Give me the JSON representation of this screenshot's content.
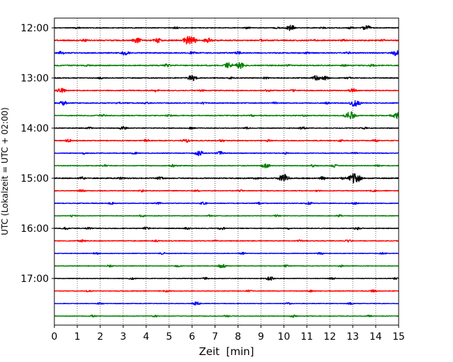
{
  "chart_data": {
    "type": "line",
    "chart_kind": "helicorder",
    "xlabel": "Zeit  [min]",
    "ylabel": "UTC (Lokalzeit = UTC + 02:00)",
    "xlim": [
      0,
      15
    ],
    "x_ticks": [
      "0",
      "1",
      "2",
      "3",
      "4",
      "5",
      "6",
      "7",
      "8",
      "9",
      "10",
      "11",
      "12",
      "13",
      "14",
      "15"
    ],
    "y_tick_labels": [
      "12:00",
      "13:00",
      "14:00",
      "15:00",
      "16:00",
      "17:00"
    ],
    "grid": "vertical-dotted",
    "colors": [
      "#000000",
      "#ff0000",
      "#0000ff",
      "#008000"
    ],
    "traces": [
      {
        "time": "12:00",
        "color": "#000000",
        "level": 0.5,
        "events": [
          [
            10.3,
            1.0
          ],
          [
            13.6,
            0.9
          ],
          [
            1.0,
            0.4
          ],
          [
            5.3,
            0.4
          ],
          [
            8.4,
            0.4
          ],
          [
            9.7,
            0.4
          ],
          [
            11.7,
            0.4
          ],
          [
            12.9,
            0.4
          ]
        ]
      },
      {
        "time": "12:15",
        "color": "#ff0000",
        "level": 0.8,
        "events": [
          [
            3.6,
            0.9
          ],
          [
            4.5,
            0.9
          ],
          [
            5.9,
            1.8
          ],
          [
            6.7,
            0.9
          ],
          [
            1.3,
            0.5
          ],
          [
            9.0,
            0.4
          ],
          [
            11.3,
            0.4
          ],
          [
            12.6,
            0.4
          ],
          [
            14.3,
            0.4
          ]
        ]
      },
      {
        "time": "12:30",
        "color": "#0000ff",
        "level": 0.7,
        "events": [
          [
            0.3,
            0.6
          ],
          [
            3.1,
            0.8
          ],
          [
            14.9,
            1.0
          ],
          [
            6.0,
            0.5
          ],
          [
            8.0,
            0.5
          ],
          [
            11.0,
            0.4
          ],
          [
            12.8,
            0.4
          ]
        ]
      },
      {
        "time": "12:45",
        "color": "#008000",
        "level": 0.7,
        "events": [
          [
            7.6,
            1.0
          ],
          [
            8.1,
            1.1
          ],
          [
            4.9,
            0.6
          ],
          [
            1.4,
            0.4
          ],
          [
            10.2,
            0.4
          ],
          [
            12.6,
            0.4
          ],
          [
            13.8,
            0.5
          ]
        ]
      },
      {
        "time": "13:00",
        "color": "#000000",
        "level": 0.6,
        "events": [
          [
            6.0,
            1.0
          ],
          [
            11.4,
            0.9
          ],
          [
            11.8,
            0.7
          ],
          [
            2.0,
            0.4
          ],
          [
            7.7,
            0.4
          ],
          [
            9.2,
            0.4
          ],
          [
            12.8,
            0.4
          ]
        ]
      },
      {
        "time": "13:15",
        "color": "#ff0000",
        "level": 0.6,
        "events": [
          [
            0.3,
            0.8
          ],
          [
            13.0,
            0.7
          ],
          [
            4.4,
            0.5
          ],
          [
            6.4,
            0.4
          ],
          [
            9.3,
            0.4
          ],
          [
            10.4,
            0.4
          ]
        ]
      },
      {
        "time": "13:30",
        "color": "#0000ff",
        "level": 0.6,
        "events": [
          [
            0.4,
            0.8
          ],
          [
            13.1,
            1.3
          ],
          [
            2.8,
            0.4
          ],
          [
            4.0,
            0.4
          ],
          [
            6.5,
            0.4
          ],
          [
            9.6,
            0.4
          ],
          [
            11.9,
            0.4
          ]
        ]
      },
      {
        "time": "13:45",
        "color": "#008000",
        "level": 0.6,
        "events": [
          [
            12.9,
            1.4
          ],
          [
            14.9,
            1.2
          ],
          [
            2.1,
            0.5
          ],
          [
            5.0,
            0.4
          ],
          [
            8.6,
            0.4
          ],
          [
            10.9,
            0.4
          ]
        ]
      },
      {
        "time": "14:00",
        "color": "#000000",
        "level": 0.5,
        "events": [
          [
            3.0,
            0.6
          ],
          [
            10.8,
            0.5
          ],
          [
            1.5,
            0.4
          ],
          [
            6.0,
            0.4
          ],
          [
            8.4,
            0.4
          ],
          [
            13.5,
            0.4
          ]
        ]
      },
      {
        "time": "14:15",
        "color": "#ff0000",
        "level": 0.6,
        "events": [
          [
            5.7,
            0.7
          ],
          [
            0.6,
            0.5
          ],
          [
            4.0,
            0.5
          ],
          [
            7.3,
            0.5
          ],
          [
            9.3,
            0.4
          ],
          [
            12.5,
            0.4
          ],
          [
            14.0,
            0.5
          ]
        ]
      },
      {
        "time": "14:30",
        "color": "#0000ff",
        "level": 0.5,
        "events": [
          [
            6.3,
            0.9
          ],
          [
            7.2,
            0.7
          ],
          [
            1.3,
            0.4
          ],
          [
            3.5,
            0.4
          ],
          [
            10.1,
            0.4
          ],
          [
            13.1,
            0.4
          ]
        ]
      },
      {
        "time": "14:45",
        "color": "#008000",
        "level": 0.5,
        "events": [
          [
            9.2,
            0.8
          ],
          [
            5.2,
            0.5
          ],
          [
            11.3,
            0.5
          ],
          [
            12.2,
            0.5
          ],
          [
            2.2,
            0.4
          ],
          [
            14.1,
            0.4
          ]
        ]
      },
      {
        "time": "15:00",
        "color": "#000000",
        "level": 0.7,
        "events": [
          [
            10.0,
            1.4
          ],
          [
            13.1,
            1.8
          ],
          [
            1.2,
            0.5
          ],
          [
            2.9,
            0.5
          ],
          [
            4.6,
            0.5
          ],
          [
            8.8,
            0.5
          ],
          [
            11.7,
            0.6
          ],
          [
            12.6,
            0.5
          ]
        ]
      },
      {
        "time": "15:15",
        "color": "#ff0000",
        "level": 0.5,
        "events": [
          [
            1.2,
            0.5
          ],
          [
            3.8,
            0.4
          ],
          [
            6.2,
            0.4
          ],
          [
            8.1,
            0.4
          ],
          [
            11.5,
            0.4
          ],
          [
            13.9,
            0.4
          ]
        ]
      },
      {
        "time": "15:30",
        "color": "#0000ff",
        "level": 0.5,
        "events": [
          [
            6.5,
            0.5
          ],
          [
            11.1,
            0.5
          ],
          [
            2.5,
            0.4
          ],
          [
            4.5,
            0.4
          ],
          [
            8.9,
            0.4
          ],
          [
            13.1,
            0.4
          ]
        ]
      },
      {
        "time": "15:45",
        "color": "#008000",
        "level": 0.4,
        "events": [
          [
            0.8,
            0.4
          ],
          [
            3.8,
            0.4
          ],
          [
            6.8,
            0.4
          ],
          [
            9.7,
            0.4
          ],
          [
            12.4,
            0.4
          ]
        ]
      },
      {
        "time": "16:00",
        "color": "#000000",
        "level": 0.5,
        "events": [
          [
            0.5,
            0.5
          ],
          [
            4.0,
            0.5
          ],
          [
            7.3,
            0.5
          ],
          [
            10.2,
            0.4
          ],
          [
            13.2,
            0.5
          ],
          [
            1.5,
            0.4
          ],
          [
            5.8,
            0.4
          ]
        ]
      },
      {
        "time": "16:15",
        "color": "#ff0000",
        "level": 0.5,
        "events": [
          [
            1.2,
            0.5
          ],
          [
            12.8,
            0.5
          ],
          [
            4.4,
            0.4
          ],
          [
            7.0,
            0.4
          ],
          [
            10.7,
            0.4
          ]
        ]
      },
      {
        "time": "16:30",
        "color": "#0000ff",
        "level": 0.4,
        "events": [
          [
            1.8,
            0.4
          ],
          [
            4.7,
            0.4
          ],
          [
            8.2,
            0.4
          ],
          [
            11.6,
            0.4
          ],
          [
            14.3,
            0.4
          ]
        ]
      },
      {
        "time": "16:45",
        "color": "#008000",
        "level": 0.4,
        "events": [
          [
            7.3,
            0.7
          ],
          [
            2.4,
            0.4
          ],
          [
            5.4,
            0.4
          ],
          [
            10.1,
            0.4
          ],
          [
            12.5,
            0.4
          ]
        ]
      },
      {
        "time": "17:00",
        "color": "#000000",
        "level": 0.4,
        "events": [
          [
            9.4,
            0.7
          ],
          [
            3.4,
            0.4
          ],
          [
            6.6,
            0.4
          ],
          [
            12.1,
            0.4
          ],
          [
            14.9,
            0.5
          ]
        ]
      },
      {
        "time": "17:15",
        "color": "#ff0000",
        "level": 0.4,
        "events": [
          [
            1.5,
            0.4
          ],
          [
            4.9,
            0.4
          ],
          [
            8.5,
            0.4
          ],
          [
            11.2,
            0.4
          ],
          [
            13.9,
            0.4
          ]
        ]
      },
      {
        "time": "17:30",
        "color": "#0000ff",
        "level": 0.4,
        "events": [
          [
            6.2,
            0.6
          ],
          [
            2.0,
            0.4
          ],
          [
            10.2,
            0.4
          ],
          [
            12.9,
            0.4
          ]
        ]
      },
      {
        "time": "17:45",
        "color": "#008000",
        "level": 0.4,
        "events": [
          [
            1.7,
            0.4
          ],
          [
            4.4,
            0.4
          ],
          [
            7.5,
            0.4
          ],
          [
            10.4,
            0.4
          ],
          [
            13.7,
            0.4
          ]
        ]
      }
    ]
  }
}
